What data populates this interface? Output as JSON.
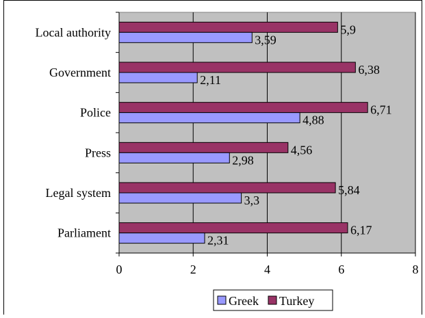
{
  "chart_data": {
    "type": "bar",
    "orientation": "horizontal",
    "title": "",
    "xlabel": "",
    "ylabel": "",
    "categories": [
      "Local authority",
      "Government",
      "Police",
      "Press",
      "Legal system",
      "Parliament"
    ],
    "series": [
      {
        "name": "Greek",
        "values": [
          3.59,
          2.11,
          4.88,
          2.98,
          3.3,
          2.31
        ],
        "value_labels": [
          "3,59",
          "2,11",
          "4,88",
          "2,98",
          "3,3",
          "2,31"
        ],
        "color": "#9999ff"
      },
      {
        "name": "Turkey",
        "values": [
          5.9,
          6.38,
          6.71,
          4.56,
          5.84,
          6.17
        ],
        "value_labels": [
          "5,9",
          "6,38",
          "6,71",
          "4,56",
          "5,84",
          "6,17"
        ],
        "color": "#993366"
      }
    ],
    "xlim": [
      0,
      8
    ],
    "x_ticks": [
      0,
      2,
      4,
      6,
      8
    ],
    "x_tick_labels": [
      "0",
      "2",
      "4",
      "6",
      "8"
    ],
    "grid": true,
    "plot_background": "#c0c0c0",
    "legend_position": "bottom"
  }
}
